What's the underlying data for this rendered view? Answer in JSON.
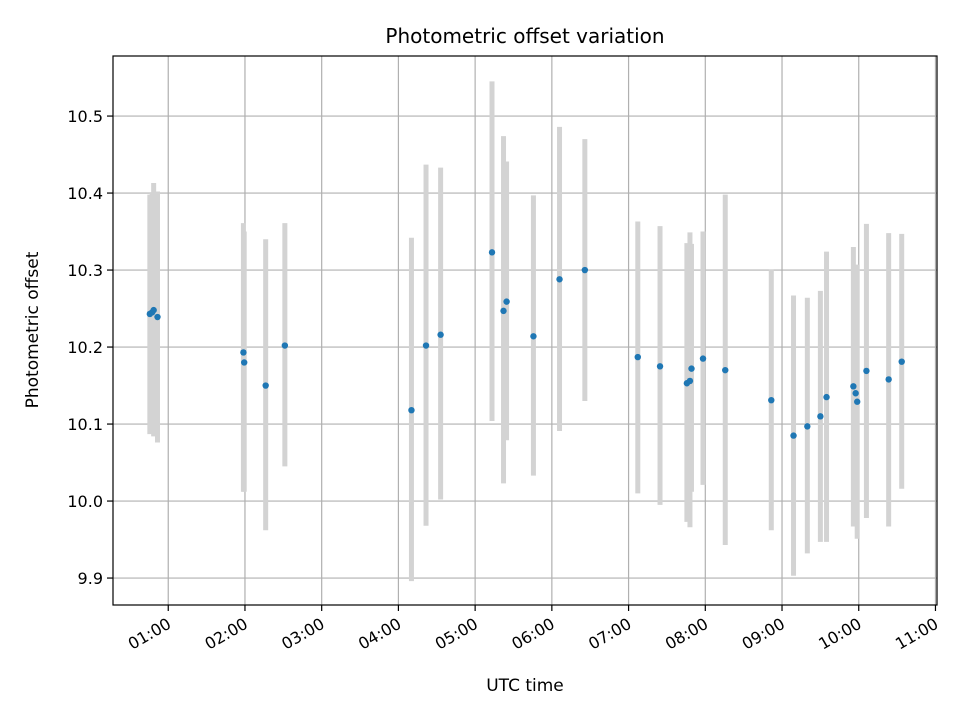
{
  "chart_data": {
    "type": "scatter",
    "title": "Photometric offset variation",
    "xlabel": "UTC time",
    "ylabel": "Photometric offset",
    "x_unit": "hours UTC",
    "xlim": [
      0.28,
      11.02
    ],
    "ylim": [
      9.865,
      10.578
    ],
    "grid": true,
    "colors": {
      "point": "#1f77b4",
      "errorbar": "#d3d3d3",
      "grid": "#b0b0b0"
    },
    "x_ticks": [
      {
        "value": 1,
        "label": "01:00"
      },
      {
        "value": 2,
        "label": "02:00"
      },
      {
        "value": 3,
        "label": "03:00"
      },
      {
        "value": 4,
        "label": "04:00"
      },
      {
        "value": 5,
        "label": "05:00"
      },
      {
        "value": 6,
        "label": "06:00"
      },
      {
        "value": 7,
        "label": "07:00"
      },
      {
        "value": 8,
        "label": "08:00"
      },
      {
        "value": 9,
        "label": "09:00"
      },
      {
        "value": 10,
        "label": "10:00"
      },
      {
        "value": 11,
        "label": "11:00"
      }
    ],
    "y_ticks": [
      {
        "value": 9.9,
        "label": "9.9"
      },
      {
        "value": 10.0,
        "label": "10.0"
      },
      {
        "value": 10.1,
        "label": "10.1"
      },
      {
        "value": 10.2,
        "label": "10.2"
      },
      {
        "value": 10.3,
        "label": "10.3"
      },
      {
        "value": 10.4,
        "label": "10.4"
      },
      {
        "value": 10.5,
        "label": "10.5"
      }
    ],
    "points": [
      {
        "x": 0.76,
        "y": 10.243,
        "ylo": 10.087,
        "yhi": 10.398
      },
      {
        "x": 0.79,
        "y": 10.245,
        "ylo": 10.09,
        "yhi": 10.4
      },
      {
        "x": 0.81,
        "y": 10.248,
        "ylo": 10.084,
        "yhi": 10.413
      },
      {
        "x": 0.86,
        "y": 10.239,
        "ylo": 10.076,
        "yhi": 10.402
      },
      {
        "x": 1.98,
        "y": 10.193,
        "ylo": 10.012,
        "yhi": 10.361
      },
      {
        "x": 1.99,
        "y": 10.18,
        "ylo": 10.012,
        "yhi": 10.35
      },
      {
        "x": 2.27,
        "y": 10.15,
        "ylo": 9.962,
        "yhi": 10.34
      },
      {
        "x": 2.52,
        "y": 10.202,
        "ylo": 10.045,
        "yhi": 10.361
      },
      {
        "x": 4.17,
        "y": 10.118,
        "ylo": 9.896,
        "yhi": 10.342
      },
      {
        "x": 4.36,
        "y": 10.202,
        "ylo": 9.968,
        "yhi": 10.437
      },
      {
        "x": 4.55,
        "y": 10.216,
        "ylo": 10.002,
        "yhi": 10.433
      },
      {
        "x": 5.22,
        "y": 10.323,
        "ylo": 10.104,
        "yhi": 10.545
      },
      {
        "x": 5.37,
        "y": 10.247,
        "ylo": 10.023,
        "yhi": 10.474
      },
      {
        "x": 5.41,
        "y": 10.259,
        "ylo": 10.079,
        "yhi": 10.441
      },
      {
        "x": 5.76,
        "y": 10.214,
        "ylo": 10.033,
        "yhi": 10.397
      },
      {
        "x": 6.1,
        "y": 10.288,
        "ylo": 10.091,
        "yhi": 10.486
      },
      {
        "x": 6.43,
        "y": 10.3,
        "ylo": 10.13,
        "yhi": 10.47
      },
      {
        "x": 7.12,
        "y": 10.187,
        "ylo": 10.01,
        "yhi": 10.363
      },
      {
        "x": 7.41,
        "y": 10.175,
        "ylo": 9.995,
        "yhi": 10.357
      },
      {
        "x": 7.76,
        "y": 10.153,
        "ylo": 9.973,
        "yhi": 10.335
      },
      {
        "x": 7.8,
        "y": 10.156,
        "ylo": 9.966,
        "yhi": 10.349
      },
      {
        "x": 7.82,
        "y": 10.172,
        "ylo": 10.012,
        "yhi": 10.334
      },
      {
        "x": 7.97,
        "y": 10.185,
        "ylo": 10.021,
        "yhi": 10.35
      },
      {
        "x": 8.26,
        "y": 10.17,
        "ylo": 9.943,
        "yhi": 10.398
      },
      {
        "x": 8.86,
        "y": 10.131,
        "ylo": 9.962,
        "yhi": 10.301
      },
      {
        "x": 9.15,
        "y": 10.085,
        "ylo": 9.903,
        "yhi": 10.267
      },
      {
        "x": 9.33,
        "y": 10.097,
        "ylo": 9.932,
        "yhi": 10.264
      },
      {
        "x": 9.5,
        "y": 10.11,
        "ylo": 9.947,
        "yhi": 10.273
      },
      {
        "x": 9.58,
        "y": 10.135,
        "ylo": 9.947,
        "yhi": 10.324
      },
      {
        "x": 9.93,
        "y": 10.149,
        "ylo": 9.967,
        "yhi": 10.33
      },
      {
        "x": 9.96,
        "y": 10.14,
        "ylo": 9.975,
        "yhi": 10.305
      },
      {
        "x": 9.98,
        "y": 10.129,
        "ylo": 9.951,
        "yhi": 10.307
      },
      {
        "x": 10.1,
        "y": 10.169,
        "ylo": 9.978,
        "yhi": 10.36
      },
      {
        "x": 10.39,
        "y": 10.158,
        "ylo": 9.967,
        "yhi": 10.348
      },
      {
        "x": 10.56,
        "y": 10.181,
        "ylo": 10.016,
        "yhi": 10.347
      }
    ]
  }
}
